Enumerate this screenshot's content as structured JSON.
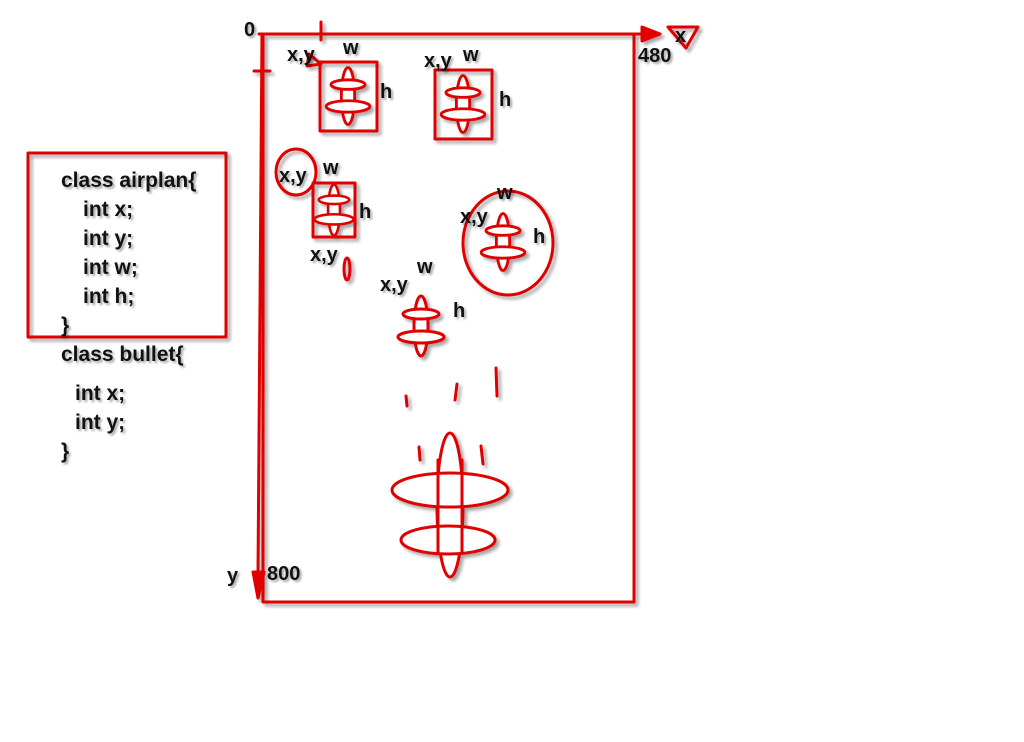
{
  "colors": {
    "ink": "#e00000",
    "text": "#111111",
    "background": "#ffffff"
  },
  "axes": {
    "origin": "0",
    "x_label": "x",
    "x_max": "480",
    "y_label": "y",
    "y_max": "800"
  },
  "code": {
    "airplan": [
      "class airplan{",
      "int x;",
      "int y;",
      "int w;",
      "int h;",
      "}"
    ],
    "bullet": [
      "class bullet{",
      "int x;",
      "int y;",
      "}"
    ]
  },
  "plane_labels": {
    "p1": {
      "xy": "x,y",
      "w": "w",
      "h": "h"
    },
    "p2": {
      "xy": "x,y",
      "w": "w",
      "h": "h"
    },
    "p3": {
      "xy": "x,y",
      "w": "w",
      "h": "h"
    },
    "p3_bottom": {
      "xy": "x,y"
    },
    "p4": {
      "xy": "x,y",
      "w": "w",
      "h": "h"
    },
    "p5": {
      "xy": "x,y",
      "w": "w",
      "h": "h"
    }
  }
}
